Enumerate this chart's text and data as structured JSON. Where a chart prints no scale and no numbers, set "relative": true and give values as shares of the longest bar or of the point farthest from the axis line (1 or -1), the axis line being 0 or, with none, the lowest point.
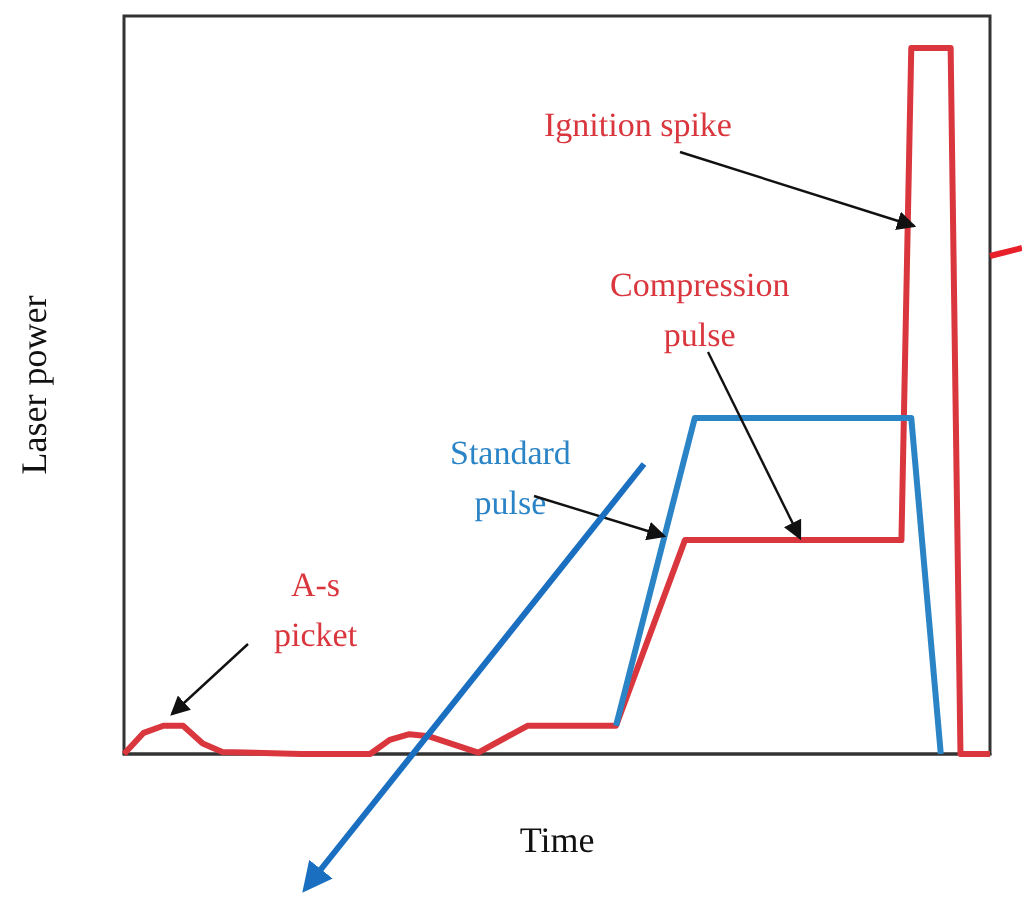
{
  "chart_data": {
    "type": "line",
    "relative": true,
    "marker": "none",
    "xlabel": "Time",
    "ylabel": "Laser power",
    "categories": [
      null,
      null,
      null,
      null,
      null,
      null,
      null,
      null,
      null,
      null,
      null,
      null,
      null,
      null,
      null,
      null,
      null,
      null,
      null,
      null,
      null,
      null,
      null,
      null,
      null,
      null,
      null,
      null,
      null,
      null,
      null,
      null,
      null,
      null,
      null,
      null,
      null,
      null,
      null,
      null,
      null,
      null,
      null,
      null,
      null,
      null,
      null,
      null,
      null,
      null,
      null,
      null,
      null,
      null,
      null,
      null,
      null,
      null,
      null,
      null,
      null,
      null,
      null,
      null,
      null,
      null,
      null,
      null,
      null,
      null,
      null,
      null,
      null,
      null,
      null,
      null,
      null,
      null,
      null,
      null,
      null,
      null,
      null,
      null,
      null,
      null,
      null,
      null,
      null
    ],
    "series": [
      {
        "color": "#d9363e",
        "values": [
          0,
          null,
          0.03,
          null,
          0.04,
          null,
          0.04,
          null,
          0.015,
          null,
          0.003,
          null,
          null,
          null,
          null,
          null,
          null,
          null,
          0,
          null,
          null,
          null,
          null,
          null,
          null,
          0,
          null,
          0.02,
          null,
          0.028,
          null,
          0.025,
          null,
          null,
          null,
          null,
          0.002,
          null,
          null,
          null,
          null,
          0.04,
          null,
          null,
          null,
          null,
          null,
          null,
          null,
          null,
          0.04,
          null,
          null,
          null,
          null,
          null,
          null,
          0.303,
          null,
          null,
          null,
          null,
          null,
          null,
          null,
          null,
          null,
          null,
          null,
          null,
          null,
          null,
          null,
          null,
          null,
          null,
          null,
          null,
          null,
          0.303,
          1,
          null,
          null,
          null,
          1,
          0,
          null,
          null,
          0
        ]
      },
      {
        "name": "Standard pulse",
        "color": "#2a84c6",
        "values": [
          null,
          null,
          null,
          null,
          null,
          null,
          null,
          null,
          null,
          null,
          null,
          null,
          null,
          null,
          null,
          null,
          null,
          null,
          null,
          null,
          null,
          null,
          null,
          null,
          null,
          null,
          null,
          null,
          null,
          null,
          null,
          null,
          null,
          null,
          null,
          null,
          null,
          null,
          null,
          null,
          null,
          null,
          null,
          null,
          null,
          null,
          null,
          null,
          null,
          null,
          0.04,
          null,
          null,
          null,
          null,
          null,
          null,
          null,
          0.476,
          null,
          null,
          null,
          null,
          null,
          null,
          null,
          null,
          null,
          null,
          null,
          null,
          null,
          null,
          null,
          null,
          null,
          null,
          null,
          null,
          null,
          0.476,
          null,
          null,
          0,
          null,
          null,
          null,
          null,
          null
        ]
      }
    ],
    "annotations": [
      "Ignition spike",
      "Compression pulse",
      "A-s picket"
    ]
  }
}
